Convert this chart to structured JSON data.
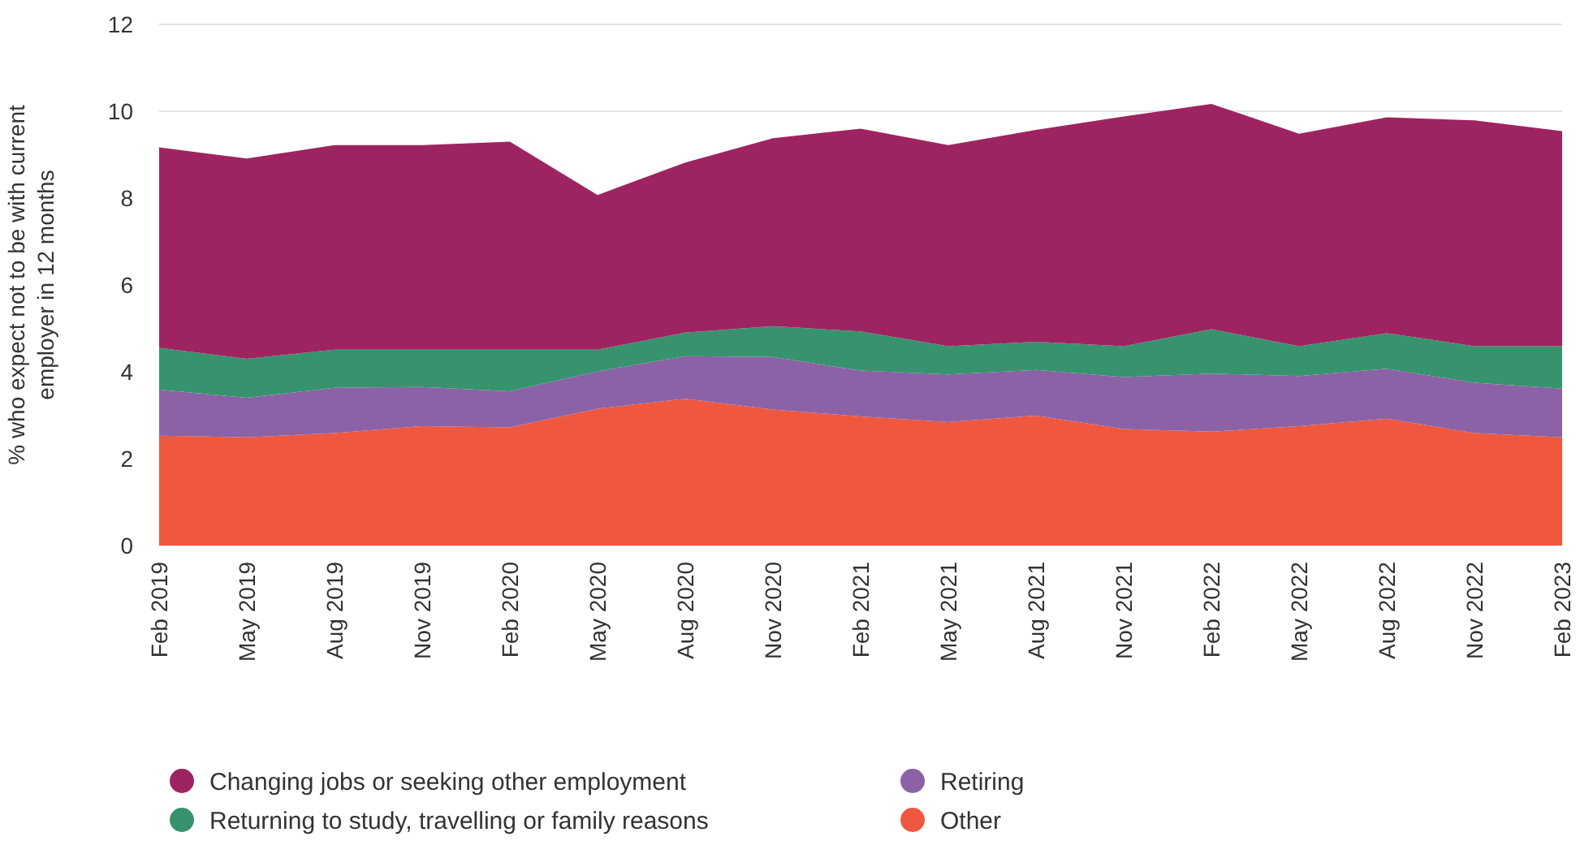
{
  "chart_data": {
    "type": "area",
    "stacked": true,
    "ylabel": "% who expect not to be with current employer in 12 months",
    "categories": [
      "Feb 2019",
      "May 2019",
      "Aug 2019",
      "Nov 2019",
      "Feb 2020",
      "May 2020",
      "Aug 2020",
      "Nov 2020",
      "Feb 2021",
      "May 2021",
      "Aug 2021",
      "Nov 2021",
      "Feb 2022",
      "May 2022",
      "Aug 2022",
      "Nov 2022",
      "Feb 2023"
    ],
    "series": [
      {
        "name": "Other",
        "color": "#ef583e",
        "values": [
          2.53,
          2.49,
          2.59,
          2.75,
          2.72,
          3.15,
          3.38,
          3.13,
          2.97,
          2.84,
          2.99,
          2.68,
          2.62,
          2.75,
          2.92,
          2.59,
          2.49
        ]
      },
      {
        "name": "Retiring",
        "color": "#8c62a7",
        "values": [
          1.06,
          0.91,
          1.04,
          0.9,
          0.83,
          0.86,
          0.98,
          1.21,
          1.06,
          1.1,
          1.05,
          1.2,
          1.34,
          1.15,
          1.15,
          1.16,
          1.12
        ]
      },
      {
        "name": "Returning to study, travelling or family reasons",
        "color": "#36936e",
        "values": [
          0.96,
          0.9,
          0.88,
          0.86,
          0.96,
          0.5,
          0.54,
          0.71,
          0.9,
          0.65,
          0.65,
          0.71,
          1.02,
          0.69,
          0.82,
          0.84,
          0.98
        ]
      },
      {
        "name": "Changing jobs or seeking other employment",
        "color": "#9e2461",
        "values": [
          4.62,
          4.61,
          4.71,
          4.71,
          4.79,
          3.56,
          3.92,
          4.33,
          4.67,
          4.63,
          4.88,
          5.29,
          5.19,
          4.89,
          4.97,
          5.2,
          4.95
        ]
      }
    ],
    "ylim": [
      0,
      12
    ],
    "yticks": [
      0,
      2,
      4,
      6,
      8,
      10,
      12
    ],
    "grid": "y",
    "legend": "bottom"
  }
}
